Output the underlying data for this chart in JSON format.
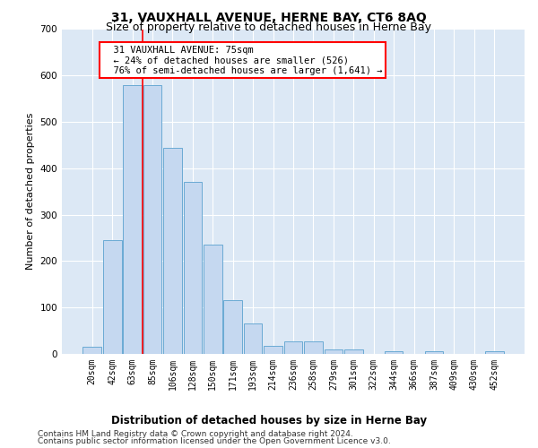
{
  "title": "31, VAUXHALL AVENUE, HERNE BAY, CT6 8AQ",
  "subtitle": "Size of property relative to detached houses in Herne Bay",
  "xlabel": "Distribution of detached houses by size in Herne Bay",
  "ylabel": "Number of detached properties",
  "footer_line1": "Contains HM Land Registry data © Crown copyright and database right 2024.",
  "footer_line2": "Contains public sector information licensed under the Open Government Licence v3.0.",
  "bar_labels": [
    "20sqm",
    "42sqm",
    "63sqm",
    "85sqm",
    "106sqm",
    "128sqm",
    "150sqm",
    "171sqm",
    "193sqm",
    "214sqm",
    "236sqm",
    "258sqm",
    "279sqm",
    "301sqm",
    "322sqm",
    "344sqm",
    "366sqm",
    "387sqm",
    "409sqm",
    "430sqm",
    "452sqm"
  ],
  "bar_values": [
    15,
    245,
    580,
    580,
    445,
    370,
    235,
    115,
    65,
    17,
    27,
    27,
    10,
    10,
    0,
    6,
    0,
    5,
    0,
    0,
    5
  ],
  "bar_color": "#c5d8f0",
  "bar_edge_color": "#6aaad4",
  "red_line_x": 2.5,
  "annotation_text": "  31 VAUXHALL AVENUE: 75sqm\n  ← 24% of detached houses are smaller (526)\n  76% of semi-detached houses are larger (1,641) →",
  "annotation_box_color": "white",
  "annotation_box_edge": "red",
  "ylim": [
    0,
    700
  ],
  "yticks": [
    0,
    100,
    200,
    300,
    400,
    500,
    600,
    700
  ],
  "plot_bg_color": "#dce8f5",
  "grid_color": "white",
  "title_fontsize": 10,
  "subtitle_fontsize": 9,
  "xlabel_fontsize": 8.5,
  "ylabel_fontsize": 8,
  "tick_fontsize": 7,
  "footer_fontsize": 6.5,
  "annot_fontsize": 7.5
}
